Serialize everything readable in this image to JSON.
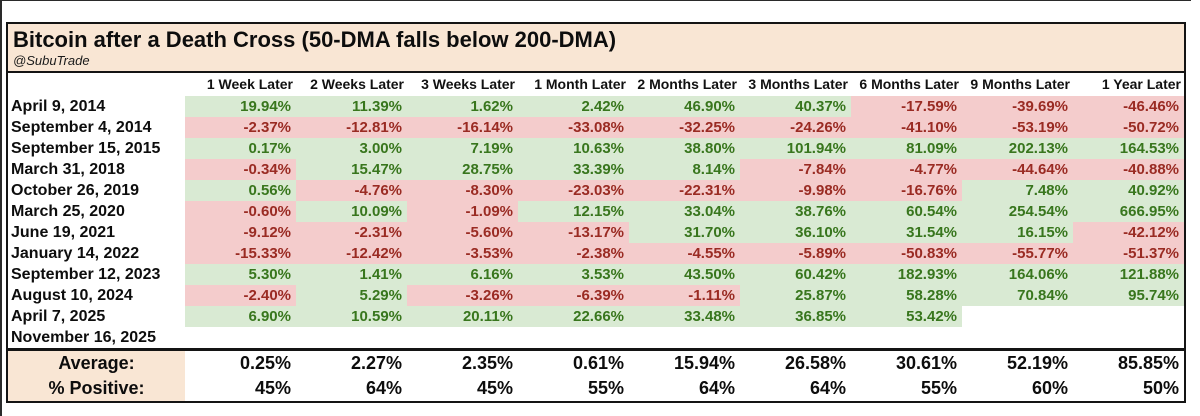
{
  "page": {
    "title": "Bitcoin after a Death Cross (50-DMA falls below 200-DMA)",
    "subtitle": "@SubuTrade"
  },
  "colors": {
    "title_bg": "#f9e6d4",
    "positive_bg": "#d9ead3",
    "positive_text": "#38761d",
    "negative_bg": "#f4cccc",
    "negative_text": "#9a2b23",
    "border": "#141414"
  },
  "chart_data": {
    "type": "table",
    "title": "Bitcoin after a Death Cross (50-DMA falls below 200-DMA)",
    "columns": [
      "1 Week Later",
      "2 Weeks Later",
      "3 Weeks Later",
      "1 Month Later",
      "2 Months Later",
      "3 Months Later",
      "6 Months Later",
      "9 Months Later",
      "1 Year Later"
    ],
    "rows": [
      {
        "date": "April 9, 2014",
        "values": [
          "19.94%",
          "11.39%",
          "1.62%",
          "2.42%",
          "46.90%",
          "40.37%",
          "-17.59%",
          "-39.69%",
          "-46.46%"
        ]
      },
      {
        "date": "September 4, 2014",
        "values": [
          "-2.37%",
          "-12.81%",
          "-16.14%",
          "-33.08%",
          "-32.25%",
          "-24.26%",
          "-41.10%",
          "-53.19%",
          "-50.72%"
        ]
      },
      {
        "date": "September 15, 2015",
        "values": [
          "0.17%",
          "3.00%",
          "7.19%",
          "10.63%",
          "38.80%",
          "101.94%",
          "81.09%",
          "202.13%",
          "164.53%"
        ]
      },
      {
        "date": "March 31, 2018",
        "values": [
          "-0.34%",
          "15.47%",
          "28.75%",
          "33.39%",
          "8.14%",
          "-7.84%",
          "-4.77%",
          "-44.64%",
          "-40.88%"
        ]
      },
      {
        "date": "October 26, 2019",
        "values": [
          "0.56%",
          "-4.76%",
          "-8.30%",
          "-23.03%",
          "-22.31%",
          "-9.98%",
          "-16.76%",
          "7.48%",
          "40.92%"
        ]
      },
      {
        "date": "March 25, 2020",
        "values": [
          "-0.60%",
          "10.09%",
          "-1.09%",
          "12.15%",
          "33.04%",
          "38.76%",
          "60.54%",
          "254.54%",
          "666.95%"
        ]
      },
      {
        "date": "June 19, 2021",
        "values": [
          "-9.12%",
          "-2.31%",
          "-5.60%",
          "-13.17%",
          "31.70%",
          "36.10%",
          "31.54%",
          "16.15%",
          "-42.12%"
        ]
      },
      {
        "date": "January 14, 2022",
        "values": [
          "-15.33%",
          "-12.42%",
          "-3.53%",
          "-2.38%",
          "-4.55%",
          "-5.89%",
          "-50.83%",
          "-55.77%",
          "-51.37%"
        ]
      },
      {
        "date": "September 12, 2023",
        "values": [
          "5.30%",
          "1.41%",
          "6.16%",
          "3.53%",
          "43.50%",
          "60.42%",
          "182.93%",
          "164.06%",
          "121.88%"
        ]
      },
      {
        "date": "August 10, 2024",
        "values": [
          "-2.40%",
          "5.29%",
          "-3.26%",
          "-6.39%",
          "-1.11%",
          "25.87%",
          "58.28%",
          "70.84%",
          "95.74%"
        ]
      },
      {
        "date": "April 7, 2025",
        "values": [
          "6.90%",
          "10.59%",
          "20.11%",
          "22.66%",
          "33.48%",
          "36.85%",
          "53.42%",
          "",
          ""
        ]
      },
      {
        "date": "November 16, 2025",
        "values": [
          "",
          "",
          "",
          "",
          "",
          "",
          "",
          "",
          ""
        ]
      }
    ],
    "summary": [
      {
        "label": "Average:",
        "values": [
          "0.25%",
          "2.27%",
          "2.35%",
          "0.61%",
          "15.94%",
          "26.58%",
          "30.61%",
          "52.19%",
          "85.85%"
        ]
      },
      {
        "label": "% Positive:",
        "values": [
          "45%",
          "64%",
          "45%",
          "55%",
          "64%",
          "64%",
          "55%",
          "60%",
          "50%"
        ]
      }
    ]
  }
}
